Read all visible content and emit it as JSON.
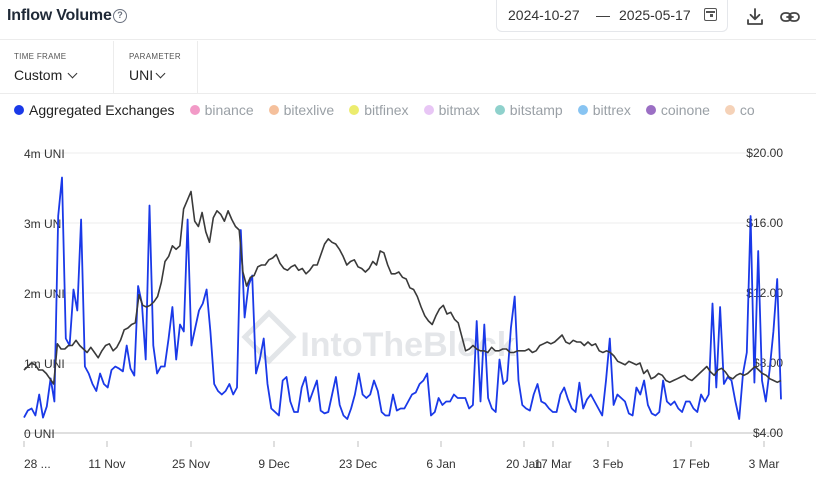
{
  "header": {
    "title": "Inflow Volume",
    "help_icon": "?",
    "date_start": "2024-10-27",
    "date_sep": "—",
    "date_end": "2025-05-17",
    "icons": [
      "calendar-icon",
      "download-icon",
      "link-icon"
    ]
  },
  "params": {
    "time_frame_label": "TIME FRAME",
    "time_frame_value": "Custom",
    "parameter_label": "PARAMETER",
    "parameter_value": "UNI"
  },
  "legend": [
    {
      "label": "Aggregated Exchanges",
      "color": "#1a39e8",
      "active": true
    },
    {
      "label": "binance",
      "color": "#f29ac7",
      "active": false
    },
    {
      "label": "bitexlive",
      "color": "#f5c09c",
      "active": false
    },
    {
      "label": "bitfinex",
      "color": "#ecec6e",
      "active": false
    },
    {
      "label": "bitmax",
      "color": "#e8c6f5",
      "active": false
    },
    {
      "label": "bitstamp",
      "color": "#8fd1cc",
      "active": false
    },
    {
      "label": "bittrex",
      "color": "#88c4f2",
      "active": false
    },
    {
      "label": "coinone",
      "color": "#9b6fc4",
      "active": false
    },
    {
      "label": "co",
      "color": "#f5d2b8",
      "active": false
    }
  ],
  "watermark": "IntoTheBlock",
  "chart_data": {
    "type": "line",
    "left_axis": {
      "ticks": [
        "0 UNI",
        "1m UNI",
        "2m UNI",
        "3m UNI",
        "4m UNI"
      ],
      "values": [
        0,
        1,
        2,
        3,
        4
      ],
      "ylim": [
        0,
        4
      ],
      "unit": "million UNI"
    },
    "right_axis": {
      "ticks": [
        "$4.00",
        "$8.00",
        "$12.00",
        "$16.00",
        "$20.00"
      ],
      "values": [
        4,
        8,
        12,
        16,
        20
      ],
      "ylim": [
        4,
        20
      ],
      "unit": "USD"
    },
    "x_ticks": [
      "28 ...",
      "11 Nov",
      "25 Nov",
      "9 Dec",
      "23 Dec",
      "6 Jan",
      "20 Jan",
      "17 Mar",
      "3 Feb",
      "17 Feb",
      "3 Mar"
    ],
    "grid": true,
    "series": [
      {
        "name": "Aggregated Exchanges",
        "axis": "left",
        "color": "#1a39e8",
        "values": [
          0.22,
          0.32,
          0.35,
          0.25,
          0.55,
          0.22,
          0.38,
          0.78,
          0.45,
          3.1,
          3.65,
          1.35,
          1.25,
          2.05,
          1.75,
          3.05,
          0.95,
          0.85,
          0.7,
          0.6,
          0.85,
          0.7,
          0.65,
          0.9,
          0.95,
          0.92,
          0.88,
          1.25,
          0.92,
          0.82,
          2.1,
          1.85,
          1.05,
          3.25,
          1.25,
          0.85,
          0.95,
          0.95,
          1.35,
          1.8,
          1.05,
          1.55,
          1.45,
          3.05,
          1.25,
          1.5,
          1.75,
          1.85,
          2.05,
          1.45,
          0.7,
          0.6,
          0.55,
          0.6,
          0.7,
          0.55,
          0.65,
          2.9,
          1.65,
          2.1,
          2.25,
          0.85,
          1.05,
          1.35,
          0.7,
          0.35,
          0.3,
          0.25,
          0.75,
          0.8,
          0.45,
          0.3,
          0.3,
          0.65,
          0.8,
          0.45,
          0.6,
          0.75,
          0.32,
          0.28,
          0.3,
          0.55,
          0.8,
          0.4,
          0.25,
          0.2,
          0.35,
          0.55,
          0.85,
          0.55,
          0.5,
          0.55,
          0.75,
          0.6,
          0.3,
          0.25,
          0.25,
          0.55,
          0.32,
          0.35,
          0.35,
          0.45,
          0.55,
          0.58,
          0.7,
          0.75,
          0.85,
          0.25,
          0.3,
          0.5,
          0.4,
          0.45,
          0.45,
          0.55,
          0.5,
          0.5,
          0.5,
          0.35,
          0.4,
          1.6,
          0.45,
          1.55,
          0.5,
          0.35,
          0.3,
          1.05,
          0.7,
          0.75,
          1.5,
          1.95,
          0.75,
          0.4,
          0.35,
          0.32,
          0.55,
          0.7,
          0.45,
          0.42,
          0.35,
          0.3,
          0.3,
          0.55,
          0.65,
          0.48,
          0.35,
          0.3,
          0.72,
          0.35,
          0.48,
          0.55,
          0.45,
          0.35,
          0.25,
          0.75,
          1.35,
          0.4,
          0.55,
          0.5,
          0.45,
          0.28,
          0.25,
          0.65,
          0.55,
          0.75,
          0.4,
          0.28,
          0.25,
          0.3,
          0.75,
          0.45,
          0.4,
          0.45,
          0.35,
          0.3,
          0.45,
          0.45,
          0.35,
          0.3,
          0.55,
          0.45,
          0.55,
          1.85,
          0.65,
          1.8,
          0.7,
          0.8,
          0.75,
          0.45,
          0.2,
          0.85,
          1.15,
          3.1,
          0.72,
          2.6,
          0.75,
          0.45,
          0.9,
          1.45,
          2.2,
          0.48
        ],
        "note_values_are_approximate_reading": true
      },
      {
        "name": "Price",
        "axis": "right",
        "color": "#3a3a3a",
        "values": [
          7.6,
          7.8,
          8.0,
          7.9,
          7.6,
          7.6,
          7.4,
          7.1,
          6.8,
          9.1,
          8.8,
          8.8,
          9.0,
          9.0,
          9.3,
          9.0,
          8.8,
          8.6,
          8.9,
          8.6,
          8.3,
          8.7,
          9.0,
          9.1,
          8.7,
          8.9,
          9.3,
          9.9,
          10.0,
          10.2,
          10.3,
          11.9,
          11.3,
          11.2,
          11.3,
          11.5,
          11.8,
          12.6,
          13.8,
          14.1,
          14.7,
          14.5,
          14.7,
          16.8,
          17.3,
          17.8,
          16.1,
          15.8,
          16.6,
          15.5,
          14.9,
          16.3,
          16.7,
          16.5,
          16.1,
          16.7,
          16.2,
          15.8,
          15.6,
          13.2,
          12.4,
          12.9,
          13.0,
          13.5,
          13.6,
          13.6,
          13.9,
          14.0,
          14.2,
          13.7,
          13.4,
          13.3,
          13.5,
          13.6,
          13.3,
          13.4,
          13.1,
          13.3,
          13.6,
          13.6,
          14.2,
          14.8,
          15.1,
          14.9,
          14.8,
          14.5,
          14.1,
          13.6,
          13.8,
          13.9,
          13.5,
          13.4,
          13.2,
          13.4,
          13.8,
          13.6,
          14.4,
          14.3,
          13.6,
          13.1,
          13.1,
          13.2,
          12.9,
          12.8,
          12.3,
          12.2,
          11.8,
          11.2,
          10.7,
          10.4,
          10.2,
          10.7,
          11.1,
          11.3,
          10.8,
          10.9,
          10.5,
          10.3,
          9.5,
          8.7,
          8.8,
          9.0,
          8.8,
          8.7,
          8.7,
          8.6,
          8.9,
          8.7,
          8.7,
          8.8,
          8.8,
          8.6,
          8.6,
          8.7,
          8.7,
          8.7,
          8.8,
          8.6,
          8.7,
          9.0,
          9.1,
          9.2,
          9.1,
          9.2,
          9.4,
          9.6,
          9.2,
          9.1,
          9.3,
          9.2,
          9.2,
          9.0,
          9.2,
          9.0,
          9.1,
          8.7,
          8.6,
          8.7,
          8.6,
          8.4,
          8.1,
          8.0,
          7.9,
          8.1,
          8.0,
          7.9,
          8.0,
          7.4,
          7.6,
          7.1,
          7.2,
          7.4,
          7.3,
          7.0,
          6.9,
          7.0,
          7.1,
          7.2,
          7.3,
          7.1,
          7.0,
          7.2,
          7.4,
          7.6,
          7.8,
          7.5,
          7.3,
          7.6,
          7.7,
          7.5,
          7.2,
          7.1,
          7.3,
          7.4,
          7.3,
          7.4,
          7.6,
          7.8,
          7.6,
          7.4,
          7.3,
          7.1,
          7.0,
          6.9,
          7.0
        ],
        "note_values_are_approximate_reading": true
      }
    ]
  }
}
